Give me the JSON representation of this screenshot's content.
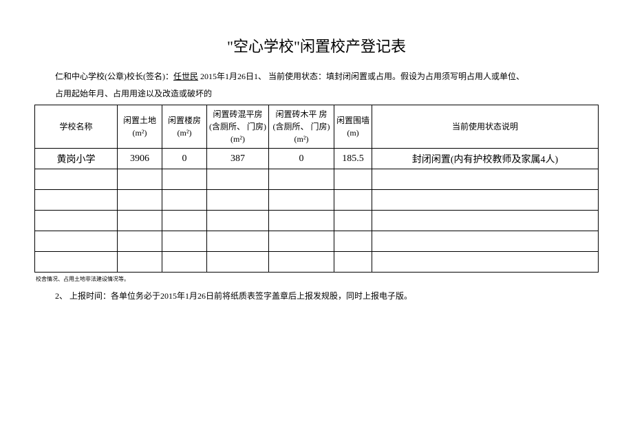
{
  "title": "\"空心学校\"闲置校产登记表",
  "header": {
    "line1_prefix": "仁和中心学校(公章)校长(签名)：",
    "principal_name": "任世民",
    "line1_middle": " 2015年1月26日1、  当前使用状态：填封闭闲置或占用。假设为占用须写明占用人或单位、",
    "line2": "占用起始年月、占用用途以及改造或破坏的"
  },
  "table": {
    "headers": {
      "school": "学校名称",
      "land": "闲置土地(m²)",
      "building": "闲置楼房(m²)",
      "brick_concrete": "闲置砖混平房(含厕所、 门房)(m²)",
      "brick_wood": "闲置砖木平  房(含厕所、  门房)(m²)",
      "wall": "闲置围墙(m)",
      "status": "当前使用状态说明"
    },
    "rows": [
      {
        "school": "黄岗小学",
        "land": "3906",
        "building": "0",
        "brick_concrete": "387",
        "brick_wood": "0",
        "wall": "185.5",
        "status": "封闭闲置(内有护校教师及家属4人)"
      }
    ],
    "empty_rows": 5
  },
  "footer_note": "校舍情况、占用土地非法建设情况等。",
  "footer_text": "2、 上报时间：各单位务必于2015年1月26日前将纸质表签字盖章后上报发规股，同时上报电子版。"
}
